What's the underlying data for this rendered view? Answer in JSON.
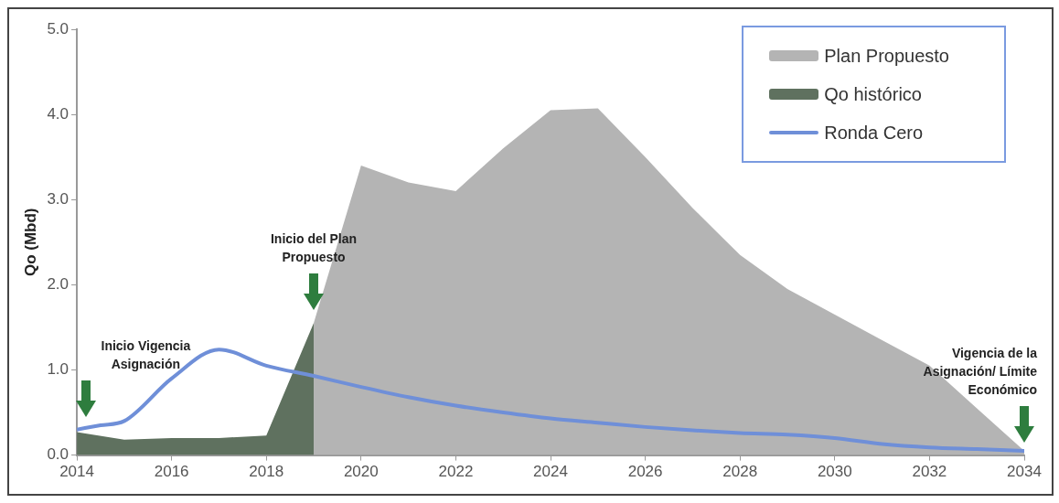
{
  "chart_data": {
    "type": "area",
    "ylabel": "Qo (Mbd)",
    "xlim": [
      2014,
      2034
    ],
    "xticks": [
      2014,
      2016,
      2018,
      2020,
      2022,
      2024,
      2026,
      2028,
      2030,
      2032,
      2034
    ],
    "ylim": [
      0,
      5
    ],
    "yticks": [
      {
        "value": 0,
        "label": "0.0"
      },
      {
        "value": 1,
        "label": "1.0"
      },
      {
        "value": 2,
        "label": "2.0"
      },
      {
        "value": 3,
        "label": "3.0"
      },
      {
        "value": 4,
        "label": "4.0"
      },
      {
        "value": 5,
        "label": "5.0"
      }
    ],
    "grid": false,
    "legend": "top right",
    "series": [
      {
        "name": "Plan Propuesto",
        "color": "#b4b4b4",
        "x": [
          2019,
          2020,
          2021,
          2022,
          2023,
          2024,
          2025,
          2026,
          2027,
          2028,
          2029,
          2030,
          2031,
          2032,
          2033,
          2034
        ],
        "values": [
          1.55,
          3.4,
          3.2,
          3.1,
          3.6,
          4.05,
          4.07,
          3.5,
          2.9,
          2.35,
          1.95,
          1.65,
          1.35,
          1.05,
          0.55,
          0.05
        ]
      },
      {
        "name": "Qo histórico",
        "color": "#5f715f",
        "x": [
          2014,
          2015,
          2016,
          2017,
          2018,
          2019
        ],
        "values": [
          0.27,
          0.18,
          0.2,
          0.2,
          0.23,
          1.55
        ]
      },
      {
        "name": "Ronda Cero",
        "type": "line",
        "color": "#6f8fd8",
        "x": [
          2014,
          2014.5,
          2015,
          2016,
          2017,
          2018,
          2019,
          2020,
          2021,
          2022,
          2023,
          2024,
          2025,
          2026,
          2027,
          2028,
          2029,
          2030,
          2031,
          2032,
          2033,
          2034
        ],
        "values": [
          0.3,
          0.35,
          0.4,
          0.9,
          1.24,
          1.05,
          0.93,
          0.8,
          0.68,
          0.58,
          0.5,
          0.43,
          0.38,
          0.33,
          0.29,
          0.26,
          0.24,
          0.2,
          0.13,
          0.09,
          0.07,
          0.05
        ]
      }
    ],
    "annotations": [
      "Inicio Vigencia Asignación",
      "Inicio del Plan Propuesto",
      "Vigencia de la Asignación/ Límite Económico"
    ]
  }
}
